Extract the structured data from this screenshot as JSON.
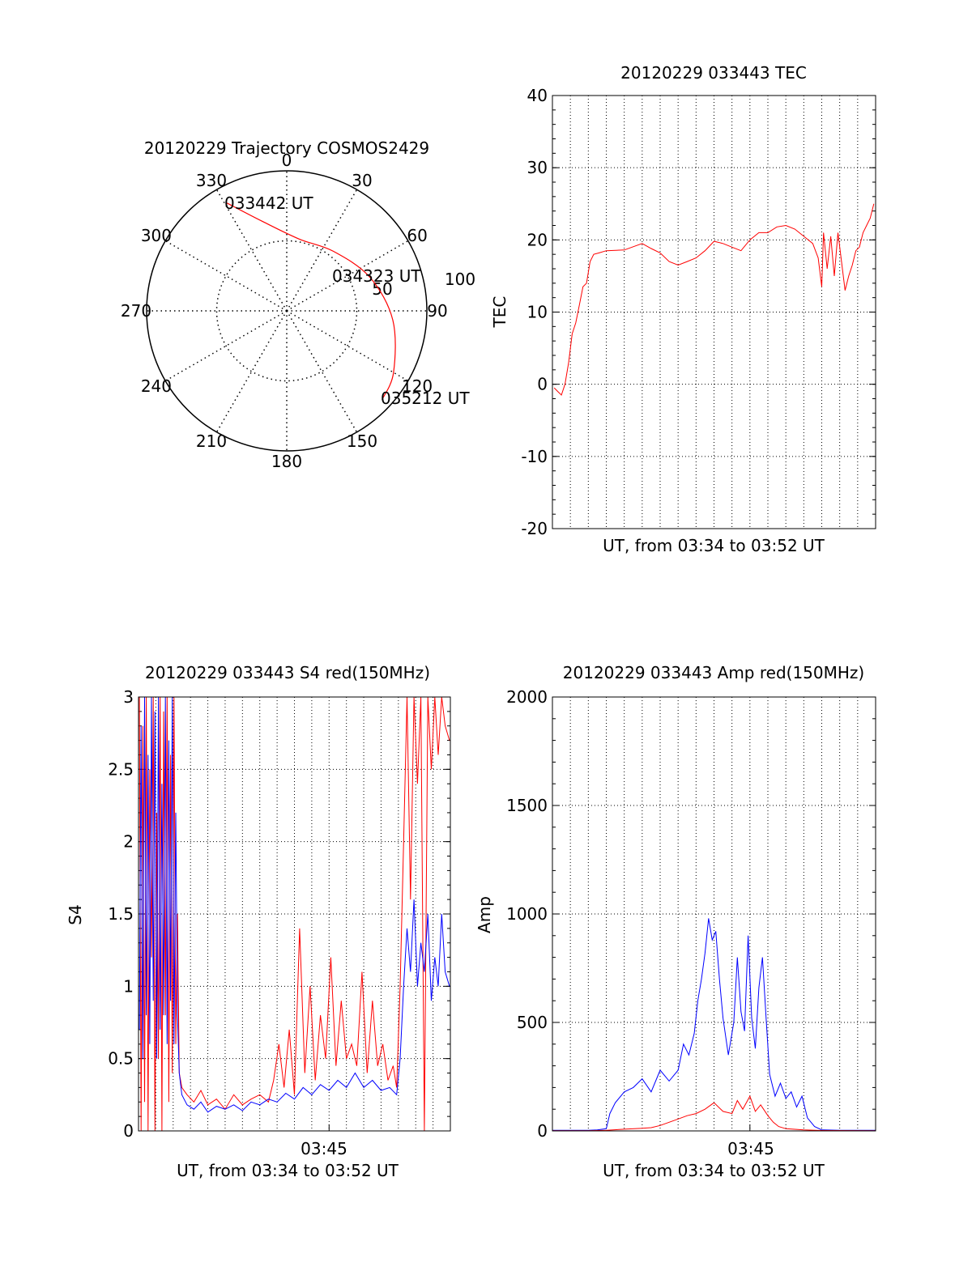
{
  "chart_data": [
    {
      "type": "polar",
      "title": "20120229 Trajectory COSMOS2429",
      "azimuth_labels": [
        "0",
        "30",
        "60",
        "90",
        "120",
        "150",
        "180",
        "210",
        "240",
        "270",
        "300",
        "330"
      ],
      "ring_labels": [
        "50",
        "100"
      ],
      "radial_max": 100,
      "track": {
        "color": "#ff0000",
        "points": [
          {
            "az": 331,
            "r": 88
          },
          {
            "az": 345,
            "r": 66
          },
          {
            "az": 10,
            "r": 52
          },
          {
            "az": 38,
            "r": 54
          },
          {
            "az": 68,
            "r": 64
          },
          {
            "az": 95,
            "r": 76
          },
          {
            "az": 120,
            "r": 88
          },
          {
            "az": 133,
            "r": 93
          }
        ]
      },
      "annotations": [
        {
          "text": "033442 UT",
          "az": 331,
          "r": 88
        },
        {
          "text": "034323 UT",
          "az": 56,
          "r": 58
        },
        {
          "text": "035212 UT",
          "az": 133,
          "r": 93
        }
      ]
    },
    {
      "type": "line",
      "title": "20120229 033443 TEC",
      "xlabel": "UT, from 03:34 to 03:52 UT",
      "ylabel": "TEC",
      "xlim": [
        0,
        18
      ],
      "ylim": [
        -20,
        40
      ],
      "yticks": [
        -20,
        -10,
        0,
        10,
        20,
        30,
        40
      ],
      "grid": true,
      "series": [
        {
          "color": "#ff0000",
          "x": [
            0.1,
            0.3,
            0.5,
            0.7,
            0.9,
            1.1,
            1.3,
            1.5,
            1.7,
            1.9,
            2.1,
            2.3,
            2.6,
            3.0,
            4.0,
            5.0,
            5.5,
            6.0,
            6.5,
            7.0,
            7.5,
            8.0,
            8.5,
            9.0,
            9.5,
            10.0,
            10.5,
            11.0,
            11.5,
            12.0,
            12.5,
            13.0,
            13.5,
            14.0,
            14.5,
            14.8,
            15.0,
            15.1,
            15.3,
            15.5,
            15.7,
            15.9,
            16.1,
            16.3,
            16.5,
            16.7,
            16.9,
            17.1,
            17.3,
            17.5,
            17.7,
            17.9
          ],
          "y": [
            -0.5,
            -1.0,
            -1.5,
            0,
            3,
            7,
            8.5,
            11,
            13.5,
            14,
            17,
            18,
            18.2,
            18.5,
            18.6,
            19.5,
            18.8,
            18.2,
            17,
            16.5,
            17,
            17.5,
            18.5,
            19.8,
            19.5,
            19,
            18.5,
            20,
            21,
            21,
            21.8,
            22,
            21.5,
            20.5,
            19.5,
            17.5,
            13.5,
            21,
            16,
            20.5,
            15,
            21,
            17,
            13,
            15,
            16.5,
            18.5,
            19,
            21,
            22,
            23,
            25
          ]
        }
      ]
    },
    {
      "type": "line",
      "title": "20120229 033443 S4 red(150MHz)",
      "xlabel": "UT, from 03:34 to 03:52 UT",
      "ylabel": "S4",
      "xlim": [
        0,
        18
      ],
      "ylim": [
        0,
        3
      ],
      "yticks": [
        "0",
        "0.5",
        "1",
        "1.5",
        "2",
        "2.5",
        "3"
      ],
      "xticks": [
        {
          "value": 11,
          "label": "03:45"
        }
      ],
      "grid": true,
      "series": [
        {
          "color": "#ff0000",
          "x": [
            0.05,
            0.15,
            0.25,
            0.35,
            0.45,
            0.55,
            0.65,
            0.75,
            0.85,
            0.95,
            1.05,
            1.15,
            1.25,
            1.35,
            1.45,
            1.55,
            1.65,
            1.75,
            1.85,
            1.95,
            2.05,
            2.15,
            2.25,
            2.35,
            2.5,
            2.8,
            3.2,
            3.6,
            4.0,
            4.5,
            5.0,
            5.5,
            6.0,
            6.5,
            7.0,
            7.5,
            7.8,
            8.1,
            8.4,
            8.7,
            9.0,
            9.3,
            9.6,
            9.9,
            10.2,
            10.5,
            10.8,
            11.1,
            11.4,
            11.7,
            12.0,
            12.3,
            12.6,
            12.9,
            13.2,
            13.5,
            13.8,
            14.1,
            14.4,
            14.7,
            14.9,
            15.1,
            15.3,
            15.5,
            15.7,
            15.9,
            16.1,
            16.3,
            16.5,
            16.7,
            16.9,
            17.1,
            17.3,
            17.5,
            17.7,
            17.95
          ],
          "y": [
            3,
            0,
            2.8,
            0.2,
            3,
            0,
            2.5,
            1.2,
            3,
            0,
            2.2,
            0.5,
            3,
            0,
            2.9,
            0.8,
            3,
            0.2,
            2.6,
            0.4,
            3,
            0.6,
            1.5,
            0.4,
            0.3,
            0.25,
            0.2,
            0.28,
            0.18,
            0.22,
            0.15,
            0.25,
            0.18,
            0.22,
            0.25,
            0.2,
            0.35,
            0.6,
            0.3,
            0.7,
            0.25,
            1.4,
            0.4,
            1.0,
            0.35,
            0.8,
            0.5,
            1.2,
            0.45,
            0.9,
            0.5,
            0.6,
            0.45,
            1.1,
            0.4,
            0.9,
            0.45,
            0.6,
            0.35,
            0.45,
            0.3,
            1.0,
            2.0,
            3.0,
            1.6,
            3.0,
            2.4,
            3.0,
            0,
            3.0,
            2.5,
            3.0,
            2.6,
            3.0,
            2.8,
            2.7
          ]
        },
        {
          "color": "#0000ff",
          "x": [
            0.05,
            0.15,
            0.25,
            0.35,
            0.45,
            0.55,
            0.65,
            0.75,
            0.85,
            0.95,
            1.05,
            1.15,
            1.25,
            1.35,
            1.45,
            1.55,
            1.65,
            1.75,
            1.85,
            1.95,
            2.05,
            2.15,
            2.25,
            2.35,
            2.5,
            2.8,
            3.2,
            3.6,
            4.0,
            4.5,
            5.0,
            5.5,
            6.0,
            6.5,
            7.0,
            7.5,
            8.0,
            8.5,
            9.0,
            9.5,
            10.0,
            10.5,
            11.0,
            11.5,
            12.0,
            12.5,
            13.0,
            13.5,
            14.0,
            14.5,
            14.9,
            15.1,
            15.3,
            15.5,
            15.7,
            15.9,
            16.1,
            16.3,
            16.5,
            16.7,
            16.9,
            17.1,
            17.3,
            17.5,
            17.7,
            17.95
          ],
          "y": [
            0.7,
            2.8,
            0.5,
            3,
            0.8,
            2.6,
            0.6,
            3,
            0.9,
            2.9,
            0.5,
            3,
            0.7,
            2.4,
            0.8,
            3,
            0.6,
            2.7,
            0.9,
            3,
            0.6,
            2.2,
            0.8,
            0.4,
            0.25,
            0.18,
            0.15,
            0.2,
            0.13,
            0.17,
            0.15,
            0.18,
            0.14,
            0.2,
            0.18,
            0.22,
            0.2,
            0.26,
            0.22,
            0.3,
            0.25,
            0.32,
            0.28,
            0.35,
            0.3,
            0.4,
            0.3,
            0.35,
            0.28,
            0.3,
            0.25,
            0.5,
            1.0,
            1.4,
            1.1,
            1.6,
            1.0,
            1.3,
            1.1,
            1.5,
            0.9,
            1.2,
            1.0,
            1.5,
            1.1,
            1.0
          ]
        }
      ]
    },
    {
      "type": "line",
      "title": "20120229 033443 Amp red(150MHz)",
      "xlabel": "UT, from 03:34 to 03:52 UT",
      "ylabel": "Amp",
      "xlim": [
        0,
        18
      ],
      "ylim": [
        0,
        2000
      ],
      "yticks": [
        0,
        500,
        1000,
        1500,
        2000
      ],
      "xticks": [
        {
          "value": 11,
          "label": "03:45"
        }
      ],
      "grid": true,
      "series": [
        {
          "color": "#0000ff",
          "x": [
            0,
            1,
            2,
            2.5,
            3.0,
            3.2,
            3.5,
            4.0,
            4.5,
            5.0,
            5.5,
            6.0,
            6.5,
            7.0,
            7.3,
            7.6,
            7.9,
            8.1,
            8.3,
            8.5,
            8.7,
            8.9,
            9.1,
            9.3,
            9.5,
            9.8,
            10.1,
            10.3,
            10.5,
            10.7,
            10.9,
            11.1,
            11.3,
            11.5,
            11.7,
            11.9,
            12.1,
            12.4,
            12.7,
            13.0,
            13.3,
            13.6,
            13.9,
            14.2,
            14.6,
            15,
            16,
            17,
            18
          ],
          "y": [
            3,
            3,
            3,
            5,
            10,
            80,
            130,
            180,
            200,
            240,
            180,
            280,
            230,
            280,
            400,
            350,
            450,
            600,
            700,
            820,
            980,
            880,
            920,
            700,
            520,
            350,
            500,
            800,
            550,
            460,
            900,
            520,
            380,
            660,
            800,
            520,
            260,
            160,
            220,
            150,
            180,
            110,
            160,
            60,
            20,
            5,
            3,
            3,
            3
          ]
        },
        {
          "color": "#ff0000",
          "x": [
            0,
            2,
            3,
            4,
            5,
            5.5,
            6,
            6.5,
            7,
            7.5,
            8,
            8.5,
            9.0,
            9.5,
            10.0,
            10.3,
            10.6,
            11.0,
            11.3,
            11.6,
            12.0,
            12.3,
            12.6,
            13.0,
            14.0,
            15.0,
            18
          ],
          "y": [
            1,
            1,
            3,
            8,
            12,
            15,
            25,
            40,
            55,
            70,
            80,
            100,
            130,
            90,
            80,
            140,
            100,
            160,
            90,
            120,
            70,
            40,
            20,
            10,
            5,
            2,
            1
          ]
        }
      ]
    }
  ]
}
